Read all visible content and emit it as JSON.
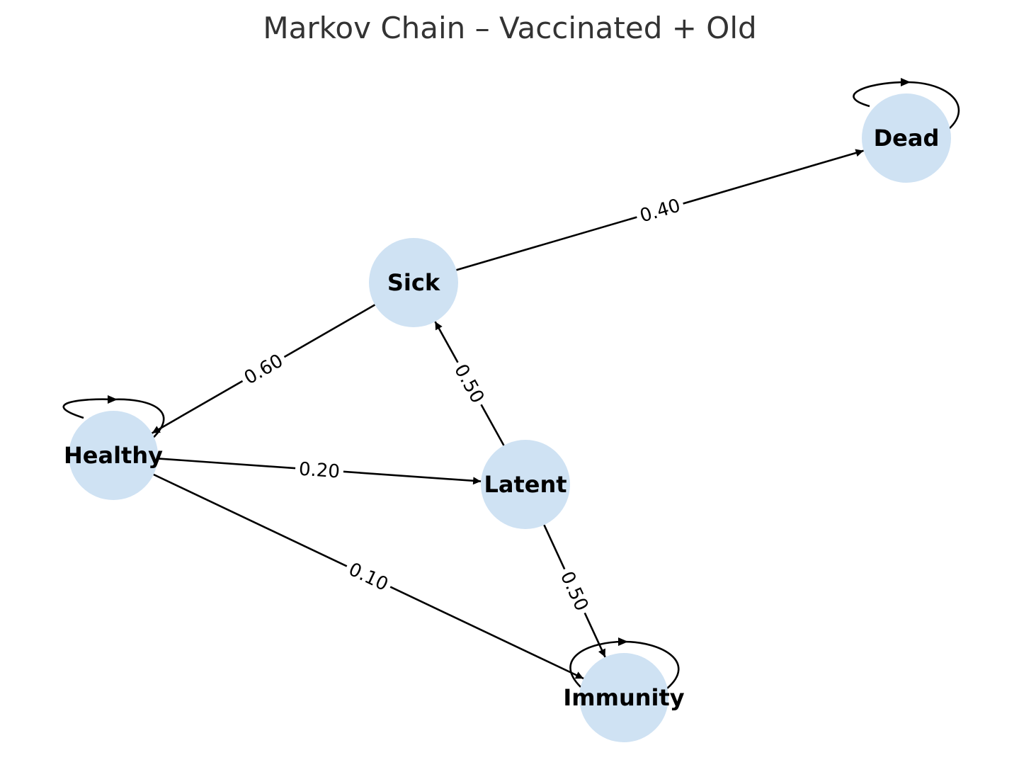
{
  "title": "Markov Chain – Vaccinated + Old",
  "colors": {
    "node_fill": "#cfe2f3",
    "edge": "#000000",
    "title": "#333333"
  },
  "nodes": [
    {
      "id": "healthy",
      "label": "Healthy"
    },
    {
      "id": "sick",
      "label": "Sick"
    },
    {
      "id": "latent",
      "label": "Latent"
    },
    {
      "id": "dead",
      "label": "Dead"
    },
    {
      "id": "immunity",
      "label": "Immunity"
    }
  ],
  "edges": [
    {
      "from": "sick",
      "to": "dead",
      "label": "0.40"
    },
    {
      "from": "sick",
      "to": "healthy",
      "label": "0.60"
    },
    {
      "from": "latent",
      "to": "sick",
      "label": "0.50"
    },
    {
      "from": "healthy",
      "to": "latent",
      "label": "0.20"
    },
    {
      "from": "healthy",
      "to": "immunity",
      "label": "0.10"
    },
    {
      "from": "latent",
      "to": "immunity",
      "label": "0.50"
    },
    {
      "from": "healthy",
      "to": "healthy",
      "label": ""
    },
    {
      "from": "dead",
      "to": "dead",
      "label": ""
    },
    {
      "from": "immunity",
      "to": "immunity",
      "label": ""
    }
  ]
}
